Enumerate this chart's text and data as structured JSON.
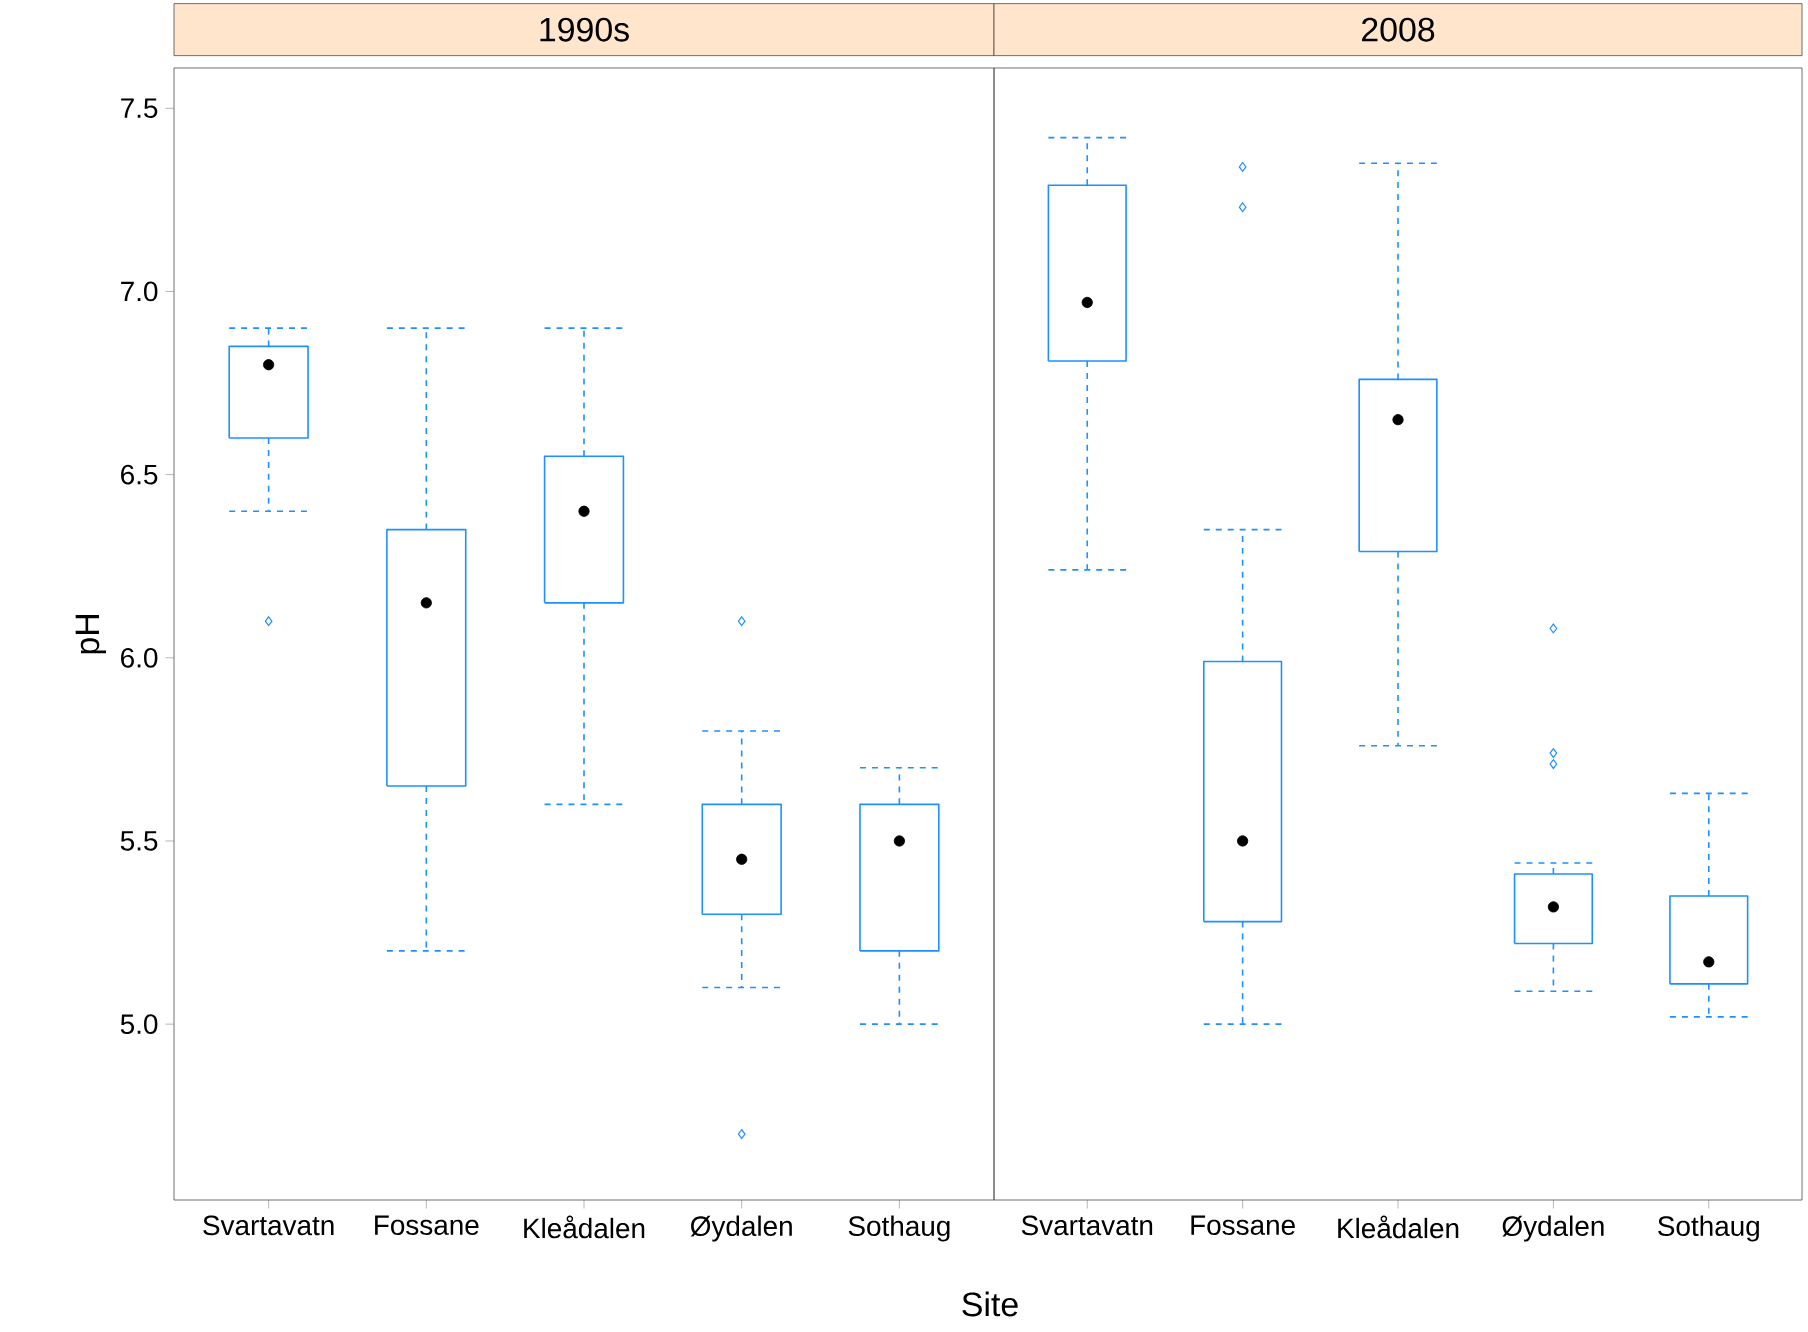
{
  "chart_data": [
    {
      "type": "box",
      "title": "1990s",
      "xlabel": "Site",
      "ylabel": "pH",
      "line_style": "dashed",
      "categories": [
        "Svartavatn",
        "Fossane",
        "Kleådalen",
        "Øydalen",
        "Sothaug"
      ],
      "series": [
        {
          "color": "#1e90ff",
          "boxes": [
            {
              "low": 6.4,
              "q1": 6.6,
              "median": 6.8,
              "q3": 6.85,
              "high": 6.9,
              "outliers": [
                6.1
              ]
            },
            {
              "low": 5.2,
              "q1": 5.65,
              "median": 6.15,
              "q3": 6.35,
              "high": 6.9
            },
            {
              "low": 5.6,
              "q1": 6.15,
              "median": 6.4,
              "q3": 6.55,
              "high": 6.9
            },
            {
              "low": 5.1,
              "q1": 5.3,
              "median": 5.45,
              "q3": 5.6,
              "high": 5.8,
              "outliers": [
                6.1,
                4.7
              ]
            },
            {
              "low": 5.0,
              "q1": 5.2,
              "median": 5.5,
              "q3": 5.6,
              "high": 5.7
            }
          ]
        }
      ],
      "ylim": [
        4.52,
        7.61
      ],
      "yticks": [
        {
          "value": 5,
          "label": "5.0"
        },
        {
          "value": 5.5,
          "label": "5.5"
        },
        {
          "value": 6,
          "label": "6.0"
        },
        {
          "value": 6.5,
          "label": "6.5"
        },
        {
          "value": 7,
          "label": "7.0"
        },
        {
          "value": 7.5,
          "label": "7.5"
        }
      ]
    },
    {
      "type": "box",
      "title": "2008",
      "line_style": "dashed",
      "tick_labels": "x",
      "categories": [
        "Svartavatn",
        "Fossane",
        "Kleådalen",
        "Øydalen",
        "Sothaug"
      ],
      "series": [
        {
          "color": "#1e90ff",
          "boxes": [
            {
              "low": 6.24,
              "q1": 6.81,
              "median": 6.97,
              "q3": 7.29,
              "high": 7.42
            },
            {
              "low": 5.0,
              "q1": 5.28,
              "median": 5.5,
              "q3": 5.99,
              "high": 6.35,
              "outliers": [
                7.34,
                7.23
              ]
            },
            {
              "low": 5.76,
              "q1": 6.29,
              "median": 6.65,
              "q3": 6.76,
              "high": 7.35
            },
            {
              "low": 5.09,
              "q1": 5.22,
              "median": 5.32,
              "q3": 5.41,
              "high": 5.44,
              "outliers": [
                6.08,
                5.74,
                5.71
              ]
            },
            {
              "low": 5.02,
              "q1": 5.11,
              "median": 5.17,
              "q3": 5.35,
              "high": 5.63
            }
          ]
        }
      ],
      "ylim": [
        4.52,
        7.61
      ]
    }
  ]
}
